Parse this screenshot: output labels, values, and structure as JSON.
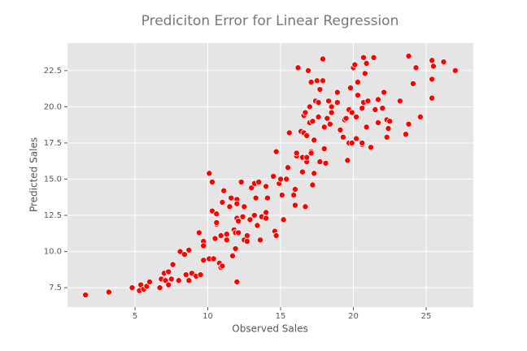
{
  "chart_data": {
    "type": "scatter",
    "title": "Prediciton Error for Linear Regression",
    "x_label": "Observed Sales",
    "y_label": "Predicted Sales",
    "color": "red",
    "grid": true,
    "xlim": [
      0.36,
      28.24
    ],
    "ylim": [
      6.16,
      24.4
    ],
    "xticks": [
      5,
      10,
      15,
      20,
      25
    ],
    "yticks": [
      {
        "value": 7.5,
        "label": "7.5"
      },
      {
        "value": 10,
        "label": "10.0"
      },
      {
        "value": 12.5,
        "label": "12.5"
      },
      {
        "value": 15,
        "label": "15.0"
      },
      {
        "value": 17.5,
        "label": "17.5"
      },
      {
        "value": 20,
        "label": "20.0"
      },
      {
        "value": 22.5,
        "label": "22.5"
      }
    ],
    "x": [
      1.6,
      3.2,
      4.8,
      5.3,
      5.4,
      5.6,
      5.8,
      6.0,
      6.7,
      6.8,
      7.0,
      7.1,
      7.3,
      7.3,
      7.6,
      7.5,
      8.0,
      8.1,
      8.4,
      8.5,
      8.7,
      8.7,
      8.9,
      9.2,
      9.4,
      9.5,
      9.7,
      9.7,
      9.7,
      10.1,
      10.1,
      10.3,
      10.3,
      10.4,
      10.5,
      10.6,
      10.6,
      10.6,
      10.8,
      10.9,
      10.9,
      11.0,
      11.0,
      11.1,
      11.3,
      11.3,
      11.5,
      11.6,
      11.7,
      11.8,
      11.9,
      11.9,
      12.0,
      12.0,
      12.0,
      12.0,
      12.1,
      12.1,
      12.3,
      12.4,
      12.5,
      12.5,
      12.7,
      12.7,
      12.9,
      13.0,
      13.2,
      13.3,
      13.2,
      13.4,
      13.5,
      13.7,
      13.6,
      14.0,
      14.0,
      14.0,
      14.1,
      14.5,
      14.6,
      14.7,
      14.7,
      14.9,
      15.0,
      15.1,
      15.2,
      15.4,
      15.5,
      15.6,
      15.9,
      16.0,
      16.0,
      16.1,
      16.1,
      16.2,
      16.4,
      16.5,
      16.5,
      16.6,
      16.6,
      16.7,
      16.8,
      16.7,
      16.8,
      16.8,
      16.9,
      17.0,
      17.0,
      17.1,
      17.1,
      17.1,
      17.2,
      17.2,
      17.3,
      17.3,
      17.4,
      17.5,
      17.6,
      17.6,
      17.7,
      17.7,
      17.9,
      17.9,
      18.0,
      18.0,
      18.1,
      18.2,
      18.3,
      18.4,
      18.5,
      18.5,
      18.9,
      18.9,
      19.1,
      19.3,
      19.4,
      19.5,
      19.6,
      19.7,
      19.7,
      19.8,
      19.9,
      19.9,
      20.0,
      20.1,
      20.2,
      20.2,
      20.3,
      20.3,
      20.6,
      20.6,
      20.6,
      20.7,
      20.7,
      20.8,
      20.9,
      20.9,
      21.0,
      21.2,
      21.4,
      21.5,
      21.7,
      21.7,
      22.0,
      22.1,
      22.3,
      22.3,
      22.4,
      22.5,
      23.2,
      23.6,
      23.8,
      23.8,
      24.1,
      24.3,
      24.6,
      25.4,
      25.4,
      25.4,
      25.5,
      26.2,
      27.0
    ],
    "values": [
      7.0,
      7.2,
      7.5,
      7.3,
      7.7,
      7.4,
      7.6,
      7.9,
      7.5,
      8.1,
      8.5,
      8.0,
      7.7,
      8.6,
      9.1,
      8.1,
      8.0,
      10.0,
      9.8,
      8.4,
      10.1,
      8.0,
      8.5,
      8.3,
      11.3,
      8.4,
      10.7,
      10.4,
      9.4,
      9.5,
      15.4,
      14.8,
      12.8,
      9.5,
      10.9,
      11.9,
      12.0,
      12.6,
      9.2,
      11.1,
      8.9,
      9.0,
      13.4,
      14.2,
      11.2,
      10.8,
      13.1,
      13.7,
      9.7,
      11.5,
      10.2,
      11.3,
      12.3,
      13.6,
      13.3,
      7.9,
      11.3,
      12.1,
      14.8,
      12.4,
      13.1,
      10.8,
      11.1,
      10.7,
      12.2,
      14.4,
      12.5,
      13.7,
      14.7,
      11.8,
      14.8,
      12.4,
      10.8,
      12.7,
      12.3,
      14.5,
      13.7,
      15.2,
      11.4,
      11.1,
      16.9,
      14.7,
      15.0,
      13.9,
      12.2,
      15.0,
      15.8,
      18.2,
      13.9,
      14.3,
      13.2,
      16.6,
      16.8,
      22.7,
      18.3,
      16.5,
      15.5,
      19.4,
      18.2,
      19.6,
      18.0,
      13.1,
      16.2,
      16.5,
      22.5,
      20.0,
      18.9,
      16.9,
      16.8,
      21.7,
      19.0,
      14.6,
      15.4,
      17.7,
      20.4,
      21.8,
      19.3,
      20.3,
      16.2,
      21.2,
      21.8,
      23.3,
      18.6,
      17.1,
      16.1,
      19.2,
      20.4,
      18.8,
      19.6,
      20.0,
      20.3,
      21.0,
      18.4,
      17.9,
      19.1,
      19.2,
      16.3,
      17.5,
      19.8,
      21.3,
      19.6,
      17.5,
      22.7,
      22.9,
      19.3,
      17.8,
      21.7,
      20.8,
      17.4,
      19.9,
      17.5,
      20.3,
      23.4,
      22.3,
      23.0,
      18.6,
      20.4,
      17.2,
      23.4,
      19.8,
      18.9,
      20.5,
      19.9,
      21.0,
      17.9,
      19.1,
      18.5,
      19.0,
      20.4,
      18.1,
      23.5,
      18.8,
      21.6,
      22.7,
      19.3,
      20.6,
      21.9,
      23.2,
      22.8,
      23.1,
      22.5
    ]
  }
}
